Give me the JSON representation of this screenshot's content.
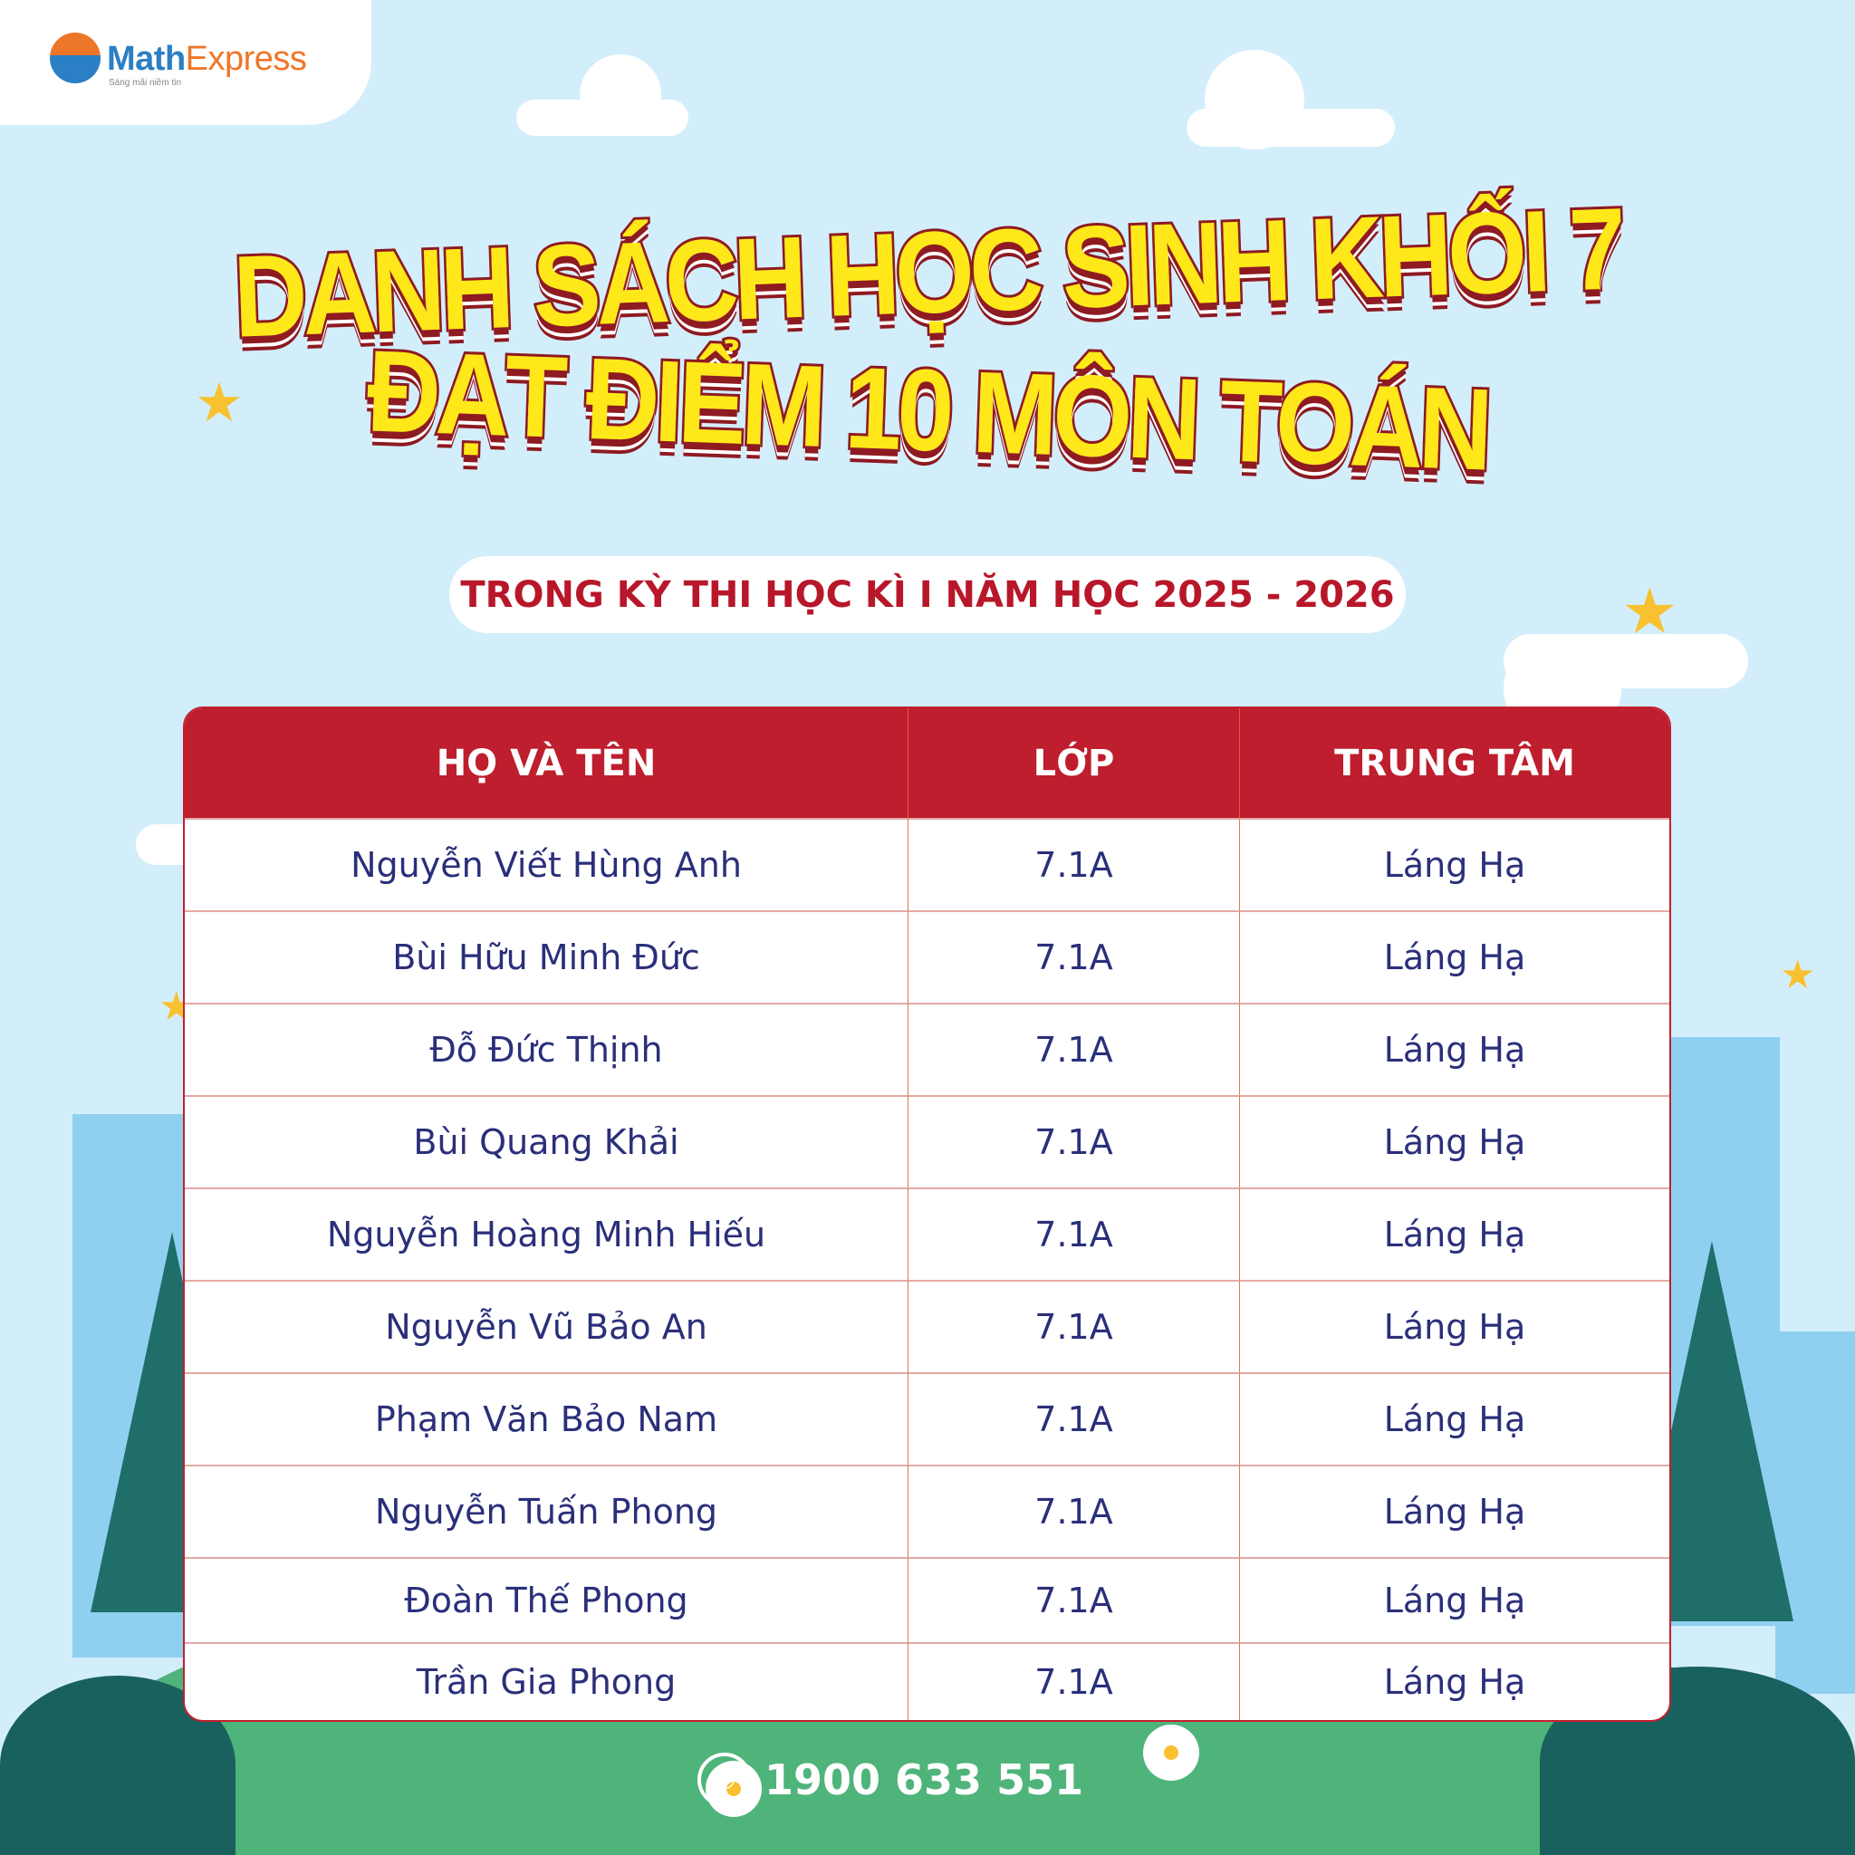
{
  "logo": {
    "brand_part1": "Math",
    "brand_part2": "Express",
    "tagline": "Sáng mãi niềm tin"
  },
  "title": {
    "line1": "DANH SÁCH HỌC SINH KHỐI 7",
    "line2": "ĐẠT ĐIỂM 10 MÔN TOÁN"
  },
  "subtitle": "TRONG KỲ THI HỌC KÌ I NĂM HỌC 2025 - 2026",
  "table": {
    "headers": [
      "HỌ VÀ TÊN",
      "LỚP",
      "TRUNG TÂM"
    ],
    "rows": [
      [
        "Nguyễn Viết Hùng Anh",
        "7.1A",
        "Láng Hạ"
      ],
      [
        "Bùi Hữu Minh Đức",
        "7.1A",
        "Láng Hạ"
      ],
      [
        "Đỗ Đức Thịnh",
        "7.1A",
        "Láng Hạ"
      ],
      [
        "Bùi Quang Khải",
        "7.1A",
        "Láng Hạ"
      ],
      [
        "Nguyễn Hoàng Minh Hiếu",
        "7.1A",
        "Láng Hạ"
      ],
      [
        "Nguyễn Vũ Bảo An",
        "7.1A",
        "Láng Hạ"
      ],
      [
        "Phạm Văn Bảo Nam",
        "7.1A",
        "Láng Hạ"
      ],
      [
        "Nguyễn Tuấn Phong",
        "7.1A",
        "Láng Hạ"
      ],
      [
        "Đoàn Thế Phong",
        "7.1A",
        "Láng Hạ"
      ],
      [
        "Trần Gia Phong",
        "7.1A",
        "Láng Hạ"
      ]
    ]
  },
  "footer": {
    "phone": "1900 633 551",
    "phone_icon": "phone-icon"
  },
  "colors": {
    "header_red": "#be1e2d",
    "title_yellow": "#ffe81a",
    "text_navy": "#2a2f7a",
    "sky": "#d3eefb",
    "grass": "#4fb47a"
  }
}
